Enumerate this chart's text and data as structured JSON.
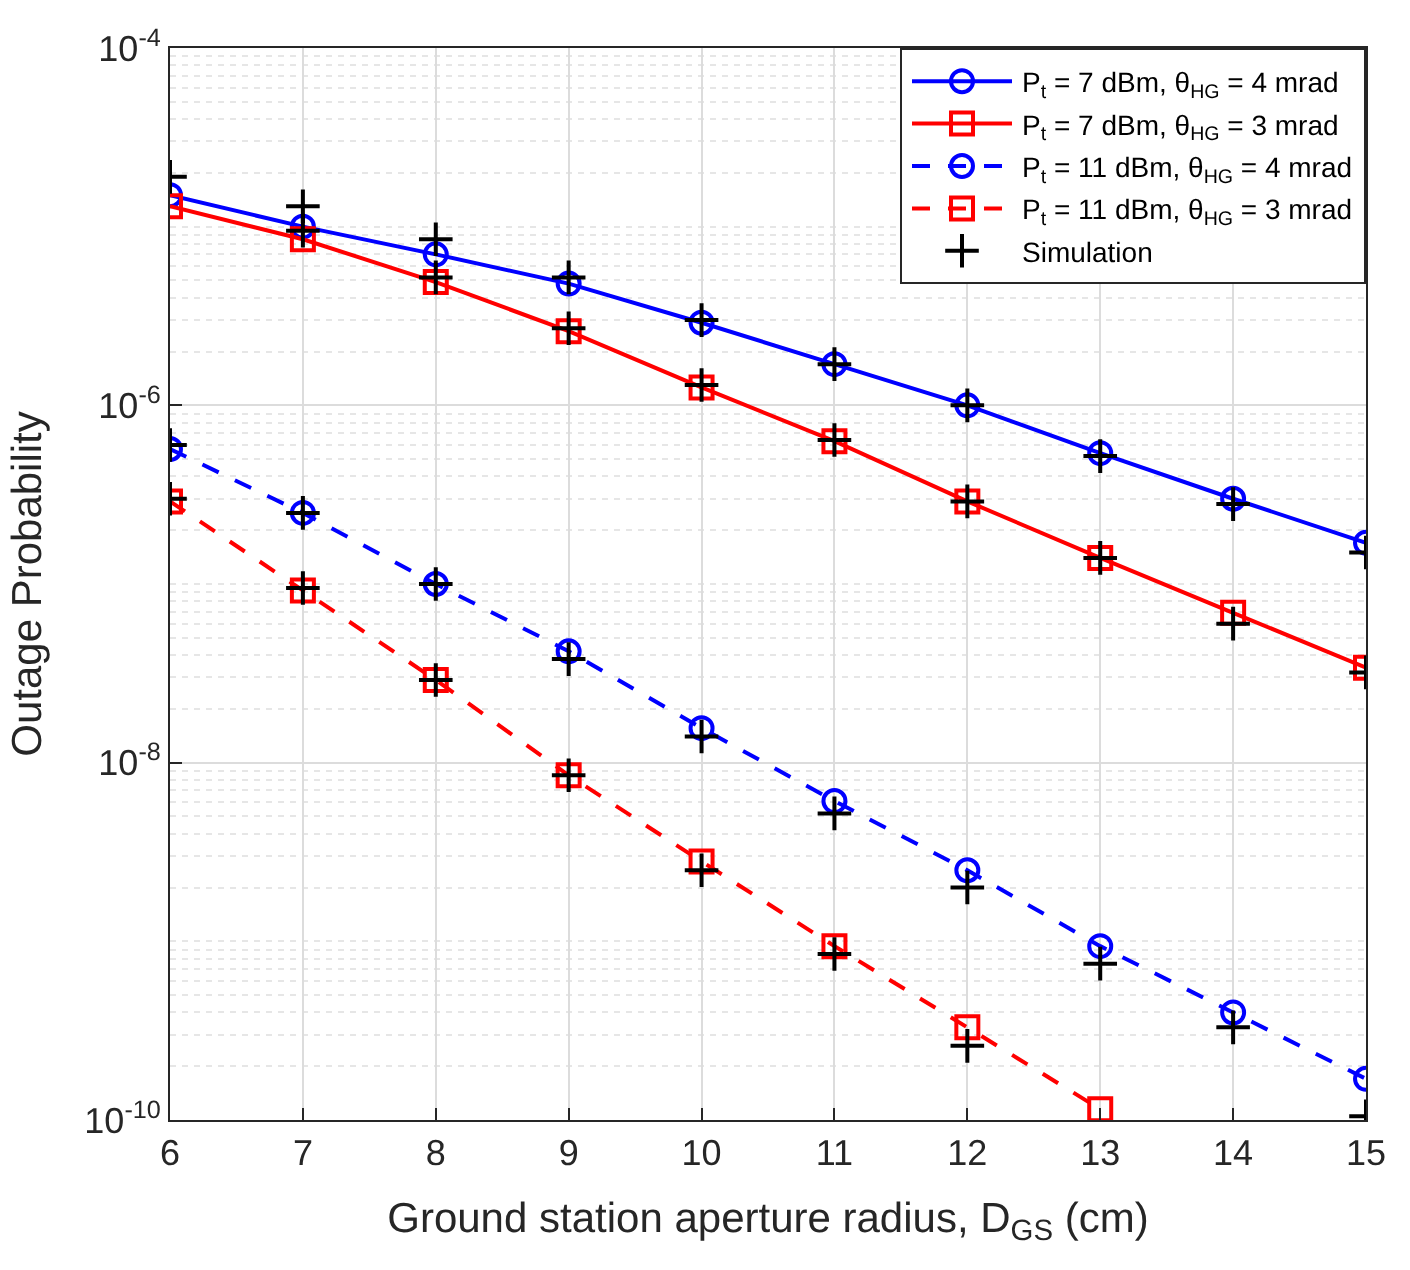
{
  "chart_data": {
    "type": "line",
    "xlabel": "Ground station aperture radius, D$_{GS}$ (cm)",
    "ylabel": "Outage Probability",
    "x": [
      6,
      7,
      8,
      9,
      10,
      11,
      12,
      13,
      14,
      15
    ],
    "xlim": [
      6,
      15
    ],
    "xticks": [
      6,
      7,
      8,
      9,
      10,
      11,
      12,
      13,
      14,
      15
    ],
    "log": "y",
    "ylim": [
      1e-10,
      0.0001
    ],
    "yticks": [
      {
        "value": 1e-10,
        "label": "10$^{-10}$"
      },
      {
        "value": 1e-08,
        "label": "10$^{-8}$"
      },
      {
        "value": 1e-06,
        "label": "10$^{-6}$"
      },
      {
        "value": 0.0001,
        "label": "10$^{-4}$"
      }
    ],
    "grid": true,
    "legend": "top right",
    "series": [
      {
        "name": "P$_{t}$ = 7 dBm, θ$_{HG}$ = 4 mrad",
        "color": "#0000ff",
        "marker": "circle",
        "line_style": "solid",
        "values": [
          1.5e-05,
          1e-05,
          7e-06,
          4.8e-06,
          2.9e-06,
          1.7e-06,
          1e-06,
          5.4e-07,
          3e-07,
          1.7e-07
        ]
      },
      {
        "name": "P$_{t}$ = 7 dBm, θ$_{HG}$ = 3 mrad",
        "color": "#ff0000",
        "marker": "square",
        "line_style": "solid",
        "values": [
          1.3e-05,
          8.5e-06,
          4.9e-06,
          2.6e-06,
          1.26e-06,
          6.3e-07,
          2.9e-07,
          1.4e-07,
          6.9e-08,
          3.4e-08
        ]
      },
      {
        "name": "P$_{t}$ = 11 dBm, θ$_{HG}$ = 4 mrad",
        "color": "#0000ff",
        "marker": "circle",
        "line_style": "dashed",
        "values": [
          5.7e-07,
          2.5e-07,
          1e-07,
          4.2e-08,
          1.56e-08,
          6.1e-09,
          2.5e-09,
          9.4e-10,
          4e-10,
          1.7e-10
        ]
      },
      {
        "name": "P$_{t}$ = 11 dBm, θ$_{HG}$ = 3 mrad",
        "color": "#ff0000",
        "marker": "square",
        "line_style": "dashed",
        "values": [
          2.9e-07,
          9.2e-08,
          2.9e-08,
          8.5e-09,
          2.8e-09,
          9.4e-10,
          3.3e-10,
          1.15e-10,
          null,
          null
        ]
      },
      {
        "name": "Simulation",
        "type": "scatter",
        "color": "#000000",
        "marker": "cross",
        "x": [
          6,
          7,
          8,
          9,
          10,
          11,
          12,
          13,
          14,
          15,
          7,
          8,
          9,
          10,
          11,
          12,
          13,
          14,
          15,
          6,
          7,
          8,
          9,
          10,
          11,
          12,
          13,
          14,
          15,
          6,
          7,
          8,
          9,
          10,
          11,
          12
        ],
        "values": [
          1.9e-05,
          1.3e-05,
          8.5e-06,
          5.2e-06,
          3e-06,
          1.7e-06,
          1e-06,
          5.2e-07,
          2.8e-07,
          1.5e-07,
          9.5e-06,
          5.2e-06,
          2.7e-06,
          1.3e-06,
          6.4e-07,
          2.9e-07,
          1.4e-07,
          6e-08,
          3.2e-08,
          6e-07,
          2.5e-07,
          1e-07,
          3.8e-08,
          1.4e-08,
          5.2e-09,
          2e-09,
          7.5e-10,
          3.3e-10,
          1.05e-10,
          3e-07,
          9.5e-08,
          2.9e-08,
          8.5e-09,
          2.5e-09,
          8.5e-10,
          2.6e-10
        ]
      }
    ]
  }
}
